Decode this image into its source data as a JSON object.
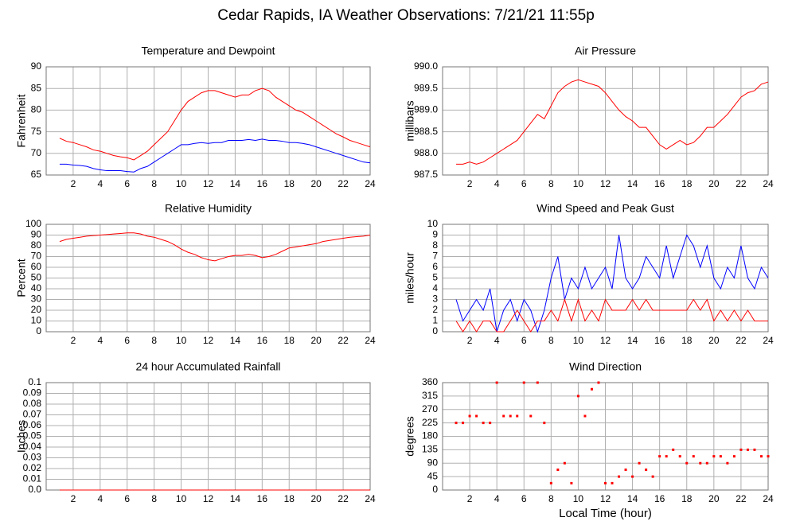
{
  "title": "Cedar Rapids, IA Weather Observations: 7/21/21 11:55p",
  "chart_data": [
    {
      "type": "line",
      "title": "Temperature and Dewpoint",
      "ylabel": "Fahrenheit",
      "x": [
        1,
        1.5,
        2,
        2.5,
        3,
        3.5,
        4,
        4.5,
        5,
        5.5,
        6,
        6.5,
        7,
        7.5,
        8,
        8.5,
        9,
        9.5,
        10,
        10.5,
        11,
        11.5,
        12,
        12.5,
        13,
        13.5,
        14,
        14.5,
        15,
        15.5,
        16,
        16.5,
        17,
        17.5,
        18,
        18.5,
        19,
        19.5,
        20,
        20.5,
        21,
        21.5,
        22,
        22.5,
        23,
        23.5,
        24
      ],
      "series": [
        {
          "color": "#ff0000",
          "values": [
            73.5,
            72.8,
            72.5,
            72,
            71.5,
            70.8,
            70.5,
            70,
            69.5,
            69.2,
            69,
            68.5,
            69.5,
            70.5,
            72,
            73.5,
            75,
            77.5,
            80,
            82,
            83,
            84,
            84.5,
            84.5,
            84,
            83.5,
            83,
            83.5,
            83.5,
            84.5,
            85,
            84.5,
            83,
            82,
            81,
            80,
            79.5,
            78.5,
            77.5,
            76.5,
            75.5,
            74.5,
            73.8,
            73,
            72.5,
            72,
            71.5
          ]
        },
        {
          "color": "#0000ff",
          "values": [
            67.5,
            67.5,
            67.3,
            67.2,
            67,
            66.5,
            66.2,
            66,
            66,
            66,
            65.8,
            65.7,
            66.5,
            67,
            68,
            69,
            70,
            71,
            72,
            72,
            72.3,
            72.5,
            72.3,
            72.5,
            72.5,
            73,
            73,
            73,
            73.2,
            73,
            73.3,
            73,
            73,
            72.8,
            72.5,
            72.5,
            72.3,
            72,
            71.5,
            71,
            70.5,
            70,
            69.5,
            69,
            68.5,
            68,
            67.8
          ]
        }
      ],
      "xlim": [
        0,
        24
      ],
      "xticks": [
        2,
        4,
        6,
        8,
        10,
        12,
        14,
        16,
        18,
        20,
        22,
        24
      ],
      "ylim": [
        65,
        90
      ],
      "yticks": [
        65,
        70,
        75,
        80,
        85,
        90
      ],
      "grid": true
    },
    {
      "type": "line",
      "title": "Air Pressure",
      "ylabel": "millibars",
      "x": [
        1,
        1.5,
        2,
        2.5,
        3,
        3.5,
        4,
        4.5,
        5,
        5.5,
        6,
        6.5,
        7,
        7.5,
        8,
        8.5,
        9,
        9.5,
        10,
        10.5,
        11,
        11.5,
        12,
        12.5,
        13,
        13.5,
        14,
        14.5,
        15,
        15.5,
        16,
        16.5,
        17,
        17.5,
        18,
        18.5,
        19,
        19.5,
        20,
        20.5,
        21,
        21.5,
        22,
        22.5,
        23,
        23.5,
        24
      ],
      "series": [
        {
          "color": "#ff0000",
          "values": [
            987.75,
            987.75,
            987.8,
            987.75,
            987.8,
            987.9,
            988,
            988.1,
            988.2,
            988.3,
            988.5,
            988.7,
            988.9,
            988.8,
            989.1,
            989.4,
            989.55,
            989.65,
            989.7,
            989.65,
            989.6,
            989.55,
            989.4,
            989.2,
            989,
            988.85,
            988.75,
            988.6,
            988.6,
            988.4,
            988.2,
            988.1,
            988.2,
            988.3,
            988.2,
            988.25,
            988.4,
            988.6,
            988.6,
            988.75,
            988.9,
            989.1,
            989.3,
            989.4,
            989.45,
            989.6,
            989.65
          ]
        }
      ],
      "xlim": [
        0,
        24
      ],
      "xticks": [
        2,
        4,
        6,
        8,
        10,
        12,
        14,
        16,
        18,
        20,
        22,
        24
      ],
      "ylim": [
        987.5,
        990
      ],
      "yticks": [
        987.5,
        {
          "value": 988,
          "label": "988.0"
        },
        988.5,
        {
          "value": 989,
          "label": "989.0"
        },
        989.5,
        {
          "value": 990,
          "label": "990.0"
        }
      ],
      "grid": true
    },
    {
      "type": "line",
      "title": "Relative Humidity",
      "ylabel": "Percent",
      "x": [
        1,
        1.5,
        2,
        2.5,
        3,
        3.5,
        4,
        4.5,
        5,
        5.5,
        6,
        6.5,
        7,
        7.5,
        8,
        8.5,
        9,
        9.5,
        10,
        10.5,
        11,
        11.5,
        12,
        12.5,
        13,
        13.5,
        14,
        14.5,
        15,
        15.5,
        16,
        16.5,
        17,
        17.5,
        18,
        18.5,
        19,
        19.5,
        20,
        20.5,
        21,
        21.5,
        22,
        22.5,
        23,
        23.5,
        24
      ],
      "series": [
        {
          "color": "#ff0000",
          "values": [
            84,
            86,
            87,
            88,
            89,
            89.5,
            90,
            90.5,
            91,
            91.5,
            92,
            92,
            91,
            89,
            88,
            86,
            84,
            81,
            77,
            74,
            72,
            69,
            67,
            66,
            68,
            70,
            71,
            71,
            72,
            71,
            69,
            70,
            72,
            75,
            78,
            79,
            80,
            81,
            82,
            84,
            85,
            86,
            87,
            88,
            88.5,
            89,
            90
          ]
        }
      ],
      "xlim": [
        0,
        24
      ],
      "xticks": [
        2,
        4,
        6,
        8,
        10,
        12,
        14,
        16,
        18,
        20,
        22,
        24
      ],
      "ylim": [
        0,
        100
      ],
      "yticks": [
        0,
        10,
        20,
        30,
        40,
        50,
        60,
        70,
        80,
        90,
        100
      ],
      "grid": true
    },
    {
      "type": "line",
      "title": "Wind Speed and Peak Gust",
      "ylabel": "miles/hour",
      "x": [
        1,
        1.5,
        2,
        2.5,
        3,
        3.5,
        4,
        4.5,
        5,
        5.5,
        6,
        6.5,
        7,
        7.5,
        8,
        8.5,
        9,
        9.5,
        10,
        10.5,
        11,
        11.5,
        12,
        12.5,
        13,
        13.5,
        14,
        14.5,
        15,
        15.5,
        16,
        16.5,
        17,
        17.5,
        18,
        18.5,
        19,
        19.5,
        20,
        20.5,
        21,
        21.5,
        22,
        22.5,
        23,
        23.5,
        24
      ],
      "series": [
        {
          "color": "#0000ff",
          "values": [
            3,
            1,
            2,
            3,
            2,
            4,
            0,
            2,
            3,
            1,
            3,
            2,
            0,
            2,
            5,
            7,
            3,
            5,
            4,
            6,
            4,
            5,
            6,
            4,
            9,
            5,
            4,
            5,
            7,
            6,
            5,
            8,
            5,
            7,
            9,
            8,
            6,
            8,
            5,
            4,
            6,
            5,
            8,
            5,
            4,
            6,
            5
          ]
        },
        {
          "color": "#ff0000",
          "values": [
            1,
            0,
            1,
            0,
            1,
            1,
            0,
            0,
            1,
            2,
            1,
            0,
            1,
            1,
            2,
            1,
            3,
            1,
            3,
            1,
            2,
            1,
            3,
            2,
            2,
            2,
            3,
            2,
            3,
            2,
            2,
            2,
            2,
            2,
            2,
            3,
            2,
            3,
            1,
            2,
            1,
            2,
            1,
            2,
            1,
            1,
            1
          ]
        }
      ],
      "xlim": [
        0,
        24
      ],
      "xticks": [
        2,
        4,
        6,
        8,
        10,
        12,
        14,
        16,
        18,
        20,
        22,
        24
      ],
      "ylim": [
        0,
        10
      ],
      "yticks": [
        0,
        1,
        2,
        3,
        4,
        5,
        6,
        7,
        8,
        9,
        10
      ],
      "grid": true
    },
    {
      "type": "line",
      "title": "24 hour Accumulated Rainfall",
      "ylabel": "Inches",
      "x": [
        1,
        24
      ],
      "series": [
        {
          "color": "#ff0000",
          "values": [
            0,
            0
          ]
        }
      ],
      "xlim": [
        0,
        24
      ],
      "xticks": [
        2,
        4,
        6,
        8,
        10,
        12,
        14,
        16,
        18,
        20,
        22,
        24
      ],
      "ylim": [
        0,
        0.1
      ],
      "yticks": [
        {
          "value": 0,
          "label": "0.0"
        },
        0.01,
        0.02,
        0.03,
        0.04,
        0.05,
        0.06,
        0.07,
        0.08,
        0.09,
        0.1
      ],
      "grid": true
    },
    {
      "type": "scatter",
      "title": "Wind Direction",
      "ylabel": "degrees",
      "xlabel": "Local Time (hour)",
      "x": [
        1,
        1.5,
        2,
        2.5,
        3,
        3.5,
        4,
        4.5,
        5,
        5.5,
        6,
        6.5,
        7,
        7.5,
        8,
        8.5,
        9,
        9.5,
        10,
        10.5,
        11,
        11.5,
        12,
        12.5,
        13,
        13.5,
        14,
        14.5,
        15,
        15.5,
        16,
        16.5,
        17,
        17.5,
        18,
        18.5,
        19,
        19.5,
        20,
        20.5,
        21,
        21.5,
        22,
        22.5,
        23,
        23.5,
        24
      ],
      "series": [
        {
          "color": "#ff0000",
          "values": [
            225,
            225,
            248,
            248,
            225,
            225,
            360,
            248,
            248,
            248,
            360,
            248,
            360,
            225,
            23,
            68,
            90,
            23,
            315,
            248,
            338,
            360,
            23,
            23,
            45,
            68,
            45,
            90,
            68,
            45,
            113,
            113,
            135,
            113,
            90,
            113,
            90,
            90,
            113,
            113,
            90,
            113,
            135,
            135,
            135,
            113,
            113
          ]
        }
      ],
      "xlim": [
        0,
        24
      ],
      "xticks": [
        2,
        4,
        6,
        8,
        10,
        12,
        14,
        16,
        18,
        20,
        22,
        24
      ],
      "ylim": [
        0,
        360
      ],
      "yticks": [
        0,
        45,
        90,
        135,
        180,
        225,
        270,
        315,
        360
      ],
      "grid": true
    }
  ]
}
